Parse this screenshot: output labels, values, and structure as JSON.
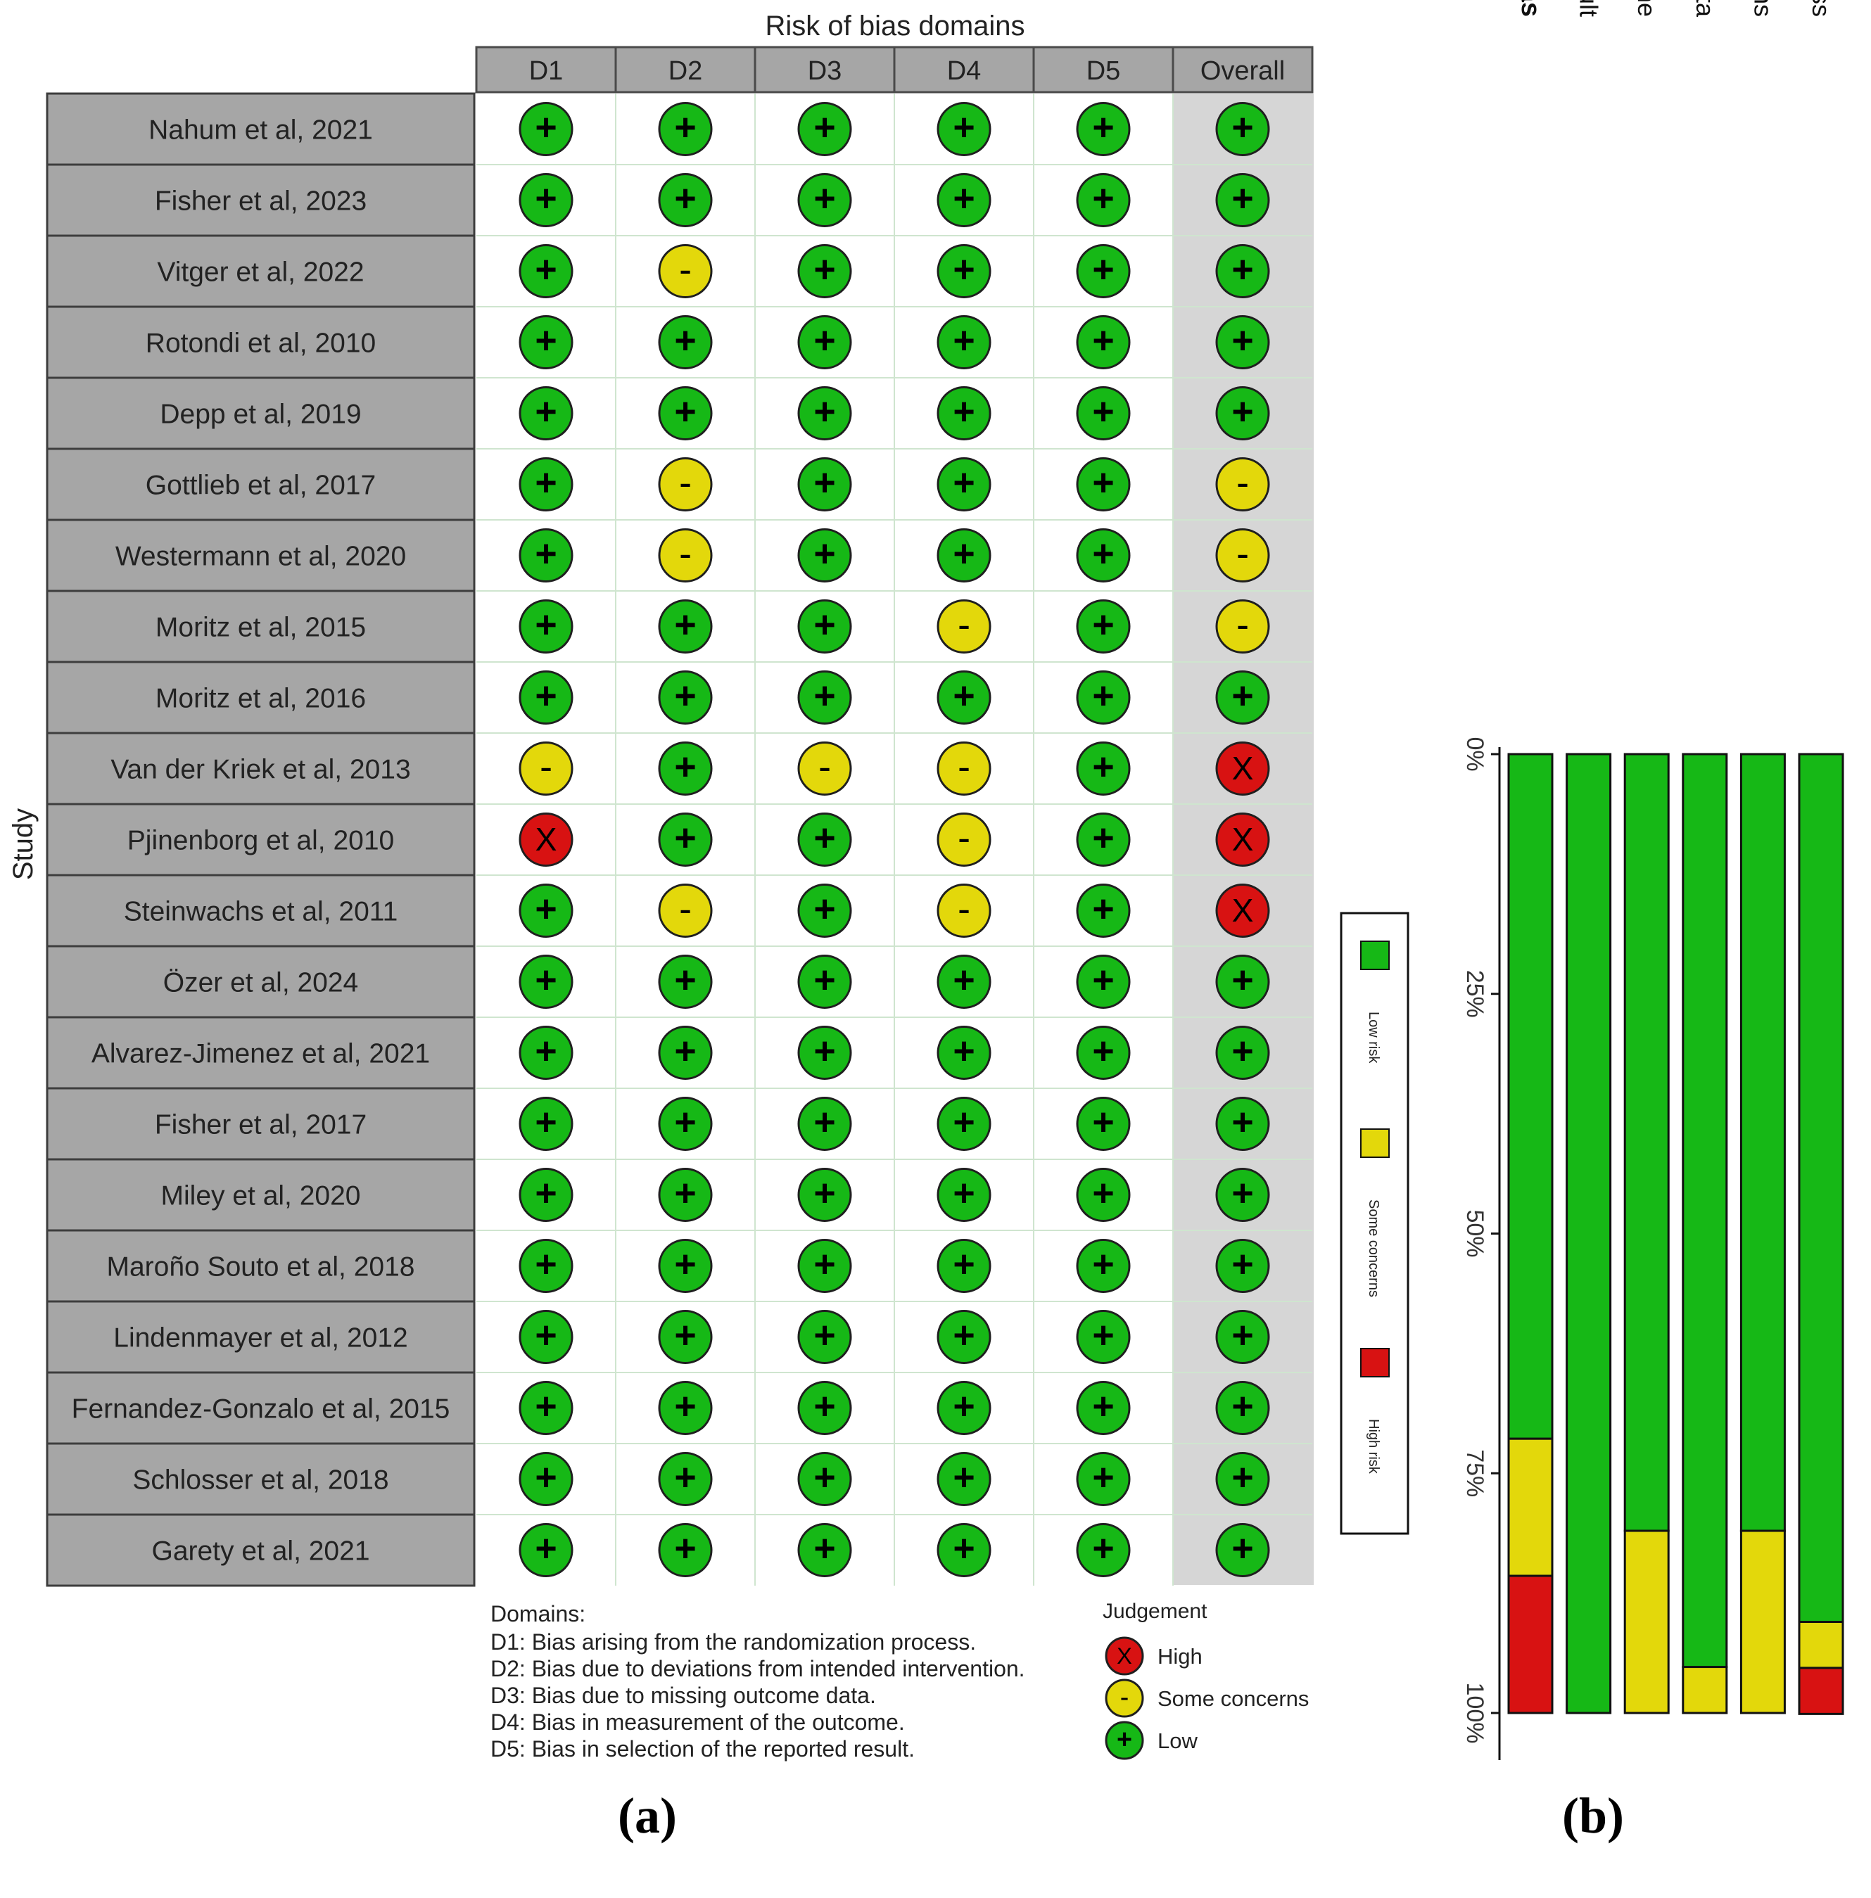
{
  "panel_labels": {
    "a": "(a)",
    "b": "(b)"
  },
  "chart_data": [
    {
      "type": "table",
      "title": "Risk of bias domains",
      "ylabel": "Study",
      "columns": [
        "D1",
        "D2",
        "D3",
        "D4",
        "D5",
        "Overall"
      ],
      "symbols": {
        "low": "+",
        "some": "-",
        "high": "X"
      },
      "colors": {
        "low": "#16b816",
        "some": "#e3d80b",
        "high": "#d81212"
      },
      "studies": [
        {
          "name": "Nahum et al, 2021",
          "judgements": [
            "low",
            "low",
            "low",
            "low",
            "low",
            "low"
          ]
        },
        {
          "name": "Fisher et al, 2023",
          "judgements": [
            "low",
            "low",
            "low",
            "low",
            "low",
            "low"
          ]
        },
        {
          "name": "Vitger et al, 2022",
          "judgements": [
            "low",
            "some",
            "low",
            "low",
            "low",
            "low"
          ]
        },
        {
          "name": "Rotondi et al, 2010",
          "judgements": [
            "low",
            "low",
            "low",
            "low",
            "low",
            "low"
          ]
        },
        {
          "name": "Depp et al, 2019",
          "judgements": [
            "low",
            "low",
            "low",
            "low",
            "low",
            "low"
          ]
        },
        {
          "name": "Gottlieb et al, 2017",
          "judgements": [
            "low",
            "some",
            "low",
            "low",
            "low",
            "some"
          ]
        },
        {
          "name": "Westermann et al, 2020",
          "judgements": [
            "low",
            "some",
            "low",
            "low",
            "low",
            "some"
          ]
        },
        {
          "name": "Moritz et al, 2015",
          "judgements": [
            "low",
            "low",
            "low",
            "some",
            "low",
            "some"
          ]
        },
        {
          "name": "Moritz et al, 2016",
          "judgements": [
            "low",
            "low",
            "low",
            "low",
            "low",
            "low"
          ]
        },
        {
          "name": "Van der Kriek et al, 2013",
          "judgements": [
            "some",
            "low",
            "some",
            "some",
            "low",
            "high"
          ]
        },
        {
          "name": "Pjinenborg et al, 2010",
          "judgements": [
            "high",
            "low",
            "low",
            "some",
            "low",
            "high"
          ]
        },
        {
          "name": "Steinwachs et al, 2011",
          "judgements": [
            "low",
            "some",
            "low",
            "some",
            "low",
            "high"
          ]
        },
        {
          "name": "Özer et al, 2024",
          "judgements": [
            "low",
            "low",
            "low",
            "low",
            "low",
            "low"
          ]
        },
        {
          "name": "Alvarez-Jimenez et al, 2021",
          "judgements": [
            "low",
            "low",
            "low",
            "low",
            "low",
            "low"
          ]
        },
        {
          "name": "Fisher et al, 2017",
          "judgements": [
            "low",
            "low",
            "low",
            "low",
            "low",
            "low"
          ]
        },
        {
          "name": "Miley et al, 2020",
          "judgements": [
            "low",
            "low",
            "low",
            "low",
            "low",
            "low"
          ]
        },
        {
          "name": "Maroño Souto et al, 2018",
          "judgements": [
            "low",
            "low",
            "low",
            "low",
            "low",
            "low"
          ]
        },
        {
          "name": "Lindenmayer et al, 2012",
          "judgements": [
            "low",
            "low",
            "low",
            "low",
            "low",
            "low"
          ]
        },
        {
          "name": "Fernandez-Gonzalo et al, 2015",
          "judgements": [
            "low",
            "low",
            "low",
            "low",
            "low",
            "low"
          ]
        },
        {
          "name": "Schlosser et al, 2018",
          "judgements": [
            "low",
            "low",
            "low",
            "low",
            "low",
            "low"
          ]
        },
        {
          "name": "Garety et al, 2021",
          "judgements": [
            "low",
            "low",
            "low",
            "low",
            "low",
            "low"
          ]
        }
      ],
      "domains_title": "Domains:",
      "domains": [
        {
          "code": "D1",
          "text": ": Bias arising from the randomization process."
        },
        {
          "code": "D2",
          "text": ": Bias due to deviations from intended intervention."
        },
        {
          "code": "D3",
          "text": ": Bias due to missing outcome data."
        },
        {
          "code": "D4",
          "text": ": Bias in measurement of the outcome."
        },
        {
          "code": "D5",
          "text": ": Bias in selection of the reported result."
        }
      ],
      "judgement_title": "Judgement",
      "judgement_legend": [
        {
          "key": "high",
          "label": "High"
        },
        {
          "key": "some",
          "label": "Some concerns"
        },
        {
          "key": "low",
          "label": "Low"
        }
      ]
    },
    {
      "type": "bar",
      "orientation": "stacked-percent (figure rotated 90°)",
      "categories": [
        "Overall risk of bias",
        "Bias in selection of the reported result",
        "Bias in measurement of the outcome",
        "Bias due to missing outcome data",
        "Bias due to deviations from intended interventions",
        "Bias arising from the randomization process"
      ],
      "series": [
        {
          "name": "Low risk",
          "color": "#16b816",
          "values": [
            71.4,
            100,
            81,
            95.2,
            81,
            90.5
          ]
        },
        {
          "name": "Some concerns",
          "color": "#e3d80b",
          "values": [
            14.3,
            0,
            19,
            4.8,
            19,
            4.8
          ]
        },
        {
          "name": "High risk",
          "color": "#d81212",
          "values": [
            14.3,
            0,
            0,
            0,
            0,
            4.8
          ]
        }
      ],
      "ticks": [
        "0%",
        "25%",
        "50%",
        "75%",
        "100%"
      ],
      "ylim": [
        0,
        100
      ],
      "legend": [
        "Low risk",
        "Some concerns",
        "High risk"
      ]
    }
  ]
}
